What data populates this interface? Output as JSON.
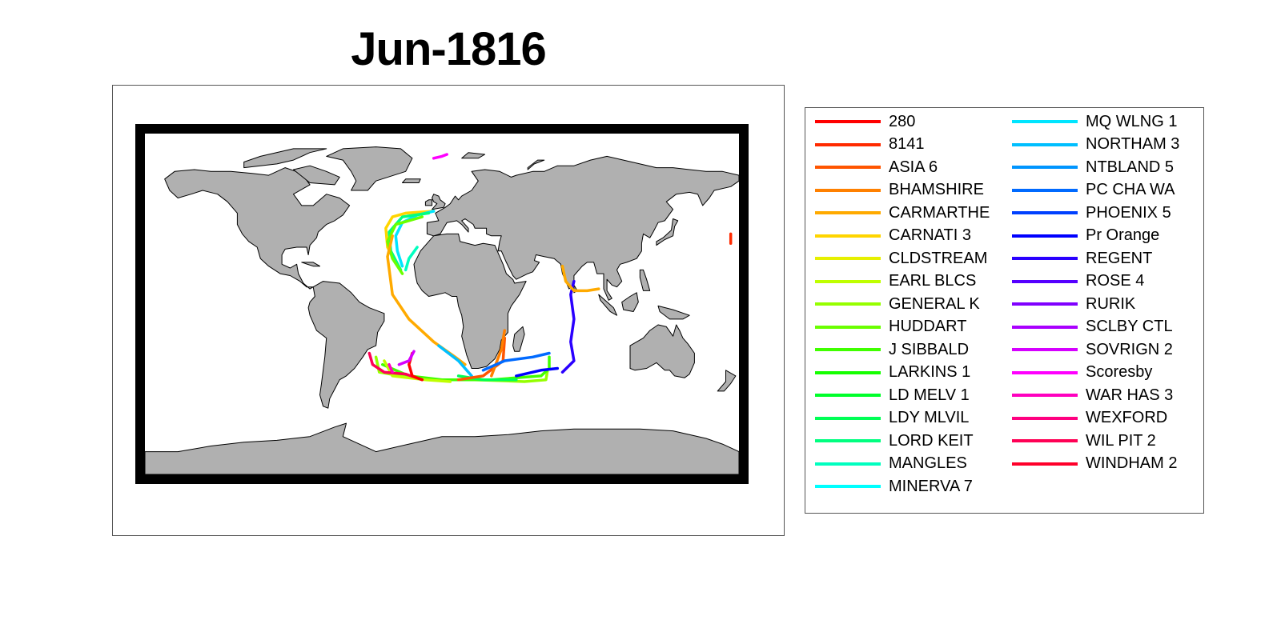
{
  "title": "Jun-1816",
  "map": {
    "projection": "equirectangular",
    "land_color": "#b0b0b0",
    "ocean_color": "#ffffff",
    "frame_color": "#000000"
  },
  "legend": {
    "columns": [
      [
        {
          "name": "280",
          "color": "#ff0000"
        },
        {
          "name": "8141",
          "color": "#ff2a00"
        },
        {
          "name": "ASIA 6",
          "color": "#ff5500"
        },
        {
          "name": "BHAMSHIRE",
          "color": "#ff8000"
        },
        {
          "name": "CARMARTHE",
          "color": "#ffaa00"
        },
        {
          "name": "CARNATI 3",
          "color": "#ffd500"
        },
        {
          "name": "CLDSTREAM",
          "color": "#e6f000"
        },
        {
          "name": "EARL BLCS",
          "color": "#bfff00"
        },
        {
          "name": "GENERAL K",
          "color": "#95ff00"
        },
        {
          "name": "HUDDART",
          "color": "#6aff00"
        },
        {
          "name": "J SIBBALD",
          "color": "#40ff00"
        },
        {
          "name": "LARKINS 1",
          "color": "#15ff00"
        },
        {
          "name": "LD MELV 1",
          "color": "#00ff2a"
        },
        {
          "name": "LDY MLVIL",
          "color": "#00ff55"
        },
        {
          "name": "LORD KEIT",
          "color": "#00ff80"
        },
        {
          "name": "MANGLES",
          "color": "#00ffbf"
        },
        {
          "name": "MINERVA 7",
          "color": "#00ffff"
        }
      ],
      [
        {
          "name": "MQ WLNG 1",
          "color": "#00e5ff"
        },
        {
          "name": "NORTHAM 3",
          "color": "#00bfff"
        },
        {
          "name": "NTBLAND 5",
          "color": "#0095ff"
        },
        {
          "name": "PC CHA WA",
          "color": "#006aff"
        },
        {
          "name": "PHOENIX 5",
          "color": "#0040ff"
        },
        {
          "name": "Pr Orange",
          "color": "#0000ff"
        },
        {
          "name": "REGENT",
          "color": "#2a00ff"
        },
        {
          "name": "ROSE 4",
          "color": "#5500ff"
        },
        {
          "name": "RURIK",
          "color": "#8000ff"
        },
        {
          "name": "SCLBY CTL",
          "color": "#aa00ff"
        },
        {
          "name": "SOVRIGN 2",
          "color": "#d500ff"
        },
        {
          "name": "Scoresby",
          "color": "#ff00ff"
        },
        {
          "name": "WAR HAS 3",
          "color": "#ff00bf"
        },
        {
          "name": "WEXFORD",
          "color": "#ff0080"
        },
        {
          "name": "WIL PIT 2",
          "color": "#ff0055"
        },
        {
          "name": "WINDHAM 2",
          "color": "#ff002a"
        }
      ]
    ]
  },
  "tracks": [
    {
      "ship": "CARNATI 3",
      "color": "#ffd500",
      "coords": [
        [
          -5,
          49
        ],
        [
          -22,
          48
        ],
        [
          -30,
          46
        ],
        [
          -34,
          40
        ],
        [
          -33,
          30
        ],
        [
          -28,
          22
        ]
      ]
    },
    {
      "ship": "MQ WLNG 1",
      "color": "#00e5ff",
      "coords": [
        [
          -5,
          49
        ],
        [
          -15,
          47
        ],
        [
          -24,
          43
        ],
        [
          -28,
          36
        ],
        [
          -27,
          28
        ],
        [
          -24,
          20
        ]
      ]
    },
    {
      "ship": "LORD KEIT",
      "color": "#00ff80",
      "coords": [
        [
          -8,
          48
        ],
        [
          -24,
          46
        ],
        [
          -32,
          38
        ],
        [
          -31,
          28
        ],
        [
          -25,
          18
        ]
      ]
    },
    {
      "ship": "HUDDART",
      "color": "#6aff00",
      "coords": [
        [
          -12,
          46
        ],
        [
          -28,
          42
        ],
        [
          -33,
          33
        ],
        [
          -30,
          24
        ],
        [
          -24,
          16
        ]
      ]
    },
    {
      "ship": "MANGLES",
      "color": "#00ffbf",
      "coords": [
        [
          -15,
          30
        ],
        [
          -20,
          24
        ],
        [
          -22,
          18
        ]
      ]
    },
    {
      "ship": "CARMARTHE",
      "color": "#ffaa00",
      "coords": [
        [
          -30,
          36
        ],
        [
          -33,
          25
        ],
        [
          -30,
          5
        ],
        [
          -20,
          -8
        ],
        [
          -5,
          -20
        ],
        [
          8,
          -28
        ],
        [
          14,
          -32
        ]
      ]
    },
    {
      "ship": "NORTHAM 3",
      "color": "#00bfff",
      "coords": [
        [
          -2,
          -22
        ],
        [
          10,
          -30
        ],
        [
          15,
          -35
        ],
        [
          18,
          -38
        ]
      ]
    },
    {
      "ship": "GENERAL K",
      "color": "#95ff00",
      "coords": [
        [
          -40,
          -28
        ],
        [
          -38,
          -36
        ],
        [
          -25,
          -38
        ],
        [
          -5,
          -40
        ],
        [
          20,
          -40
        ],
        [
          50,
          -41
        ],
        [
          63,
          -40
        ],
        [
          64,
          -35
        ]
      ]
    },
    {
      "ship": "J SIBBALD",
      "color": "#40ff00",
      "coords": [
        [
          -36,
          -32
        ],
        [
          -20,
          -38
        ],
        [
          0,
          -40
        ],
        [
          30,
          -40
        ],
        [
          60,
          -38
        ],
        [
          65,
          -34
        ],
        [
          65,
          -28
        ]
      ]
    },
    {
      "ship": "LDY MLVIL",
      "color": "#00ff55",
      "coords": [
        [
          10,
          -38
        ],
        [
          25,
          -40
        ],
        [
          45,
          -40
        ]
      ]
    },
    {
      "ship": "EARL BLCS",
      "color": "#bfff00",
      "coords": [
        [
          -35,
          -30
        ],
        [
          -30,
          -38
        ],
        [
          -10,
          -40
        ],
        [
          5,
          -41
        ]
      ]
    },
    {
      "ship": "WIL PIT 2",
      "color": "#ff0055",
      "coords": [
        [
          -44,
          -26
        ],
        [
          -42,
          -32
        ],
        [
          -35,
          -36
        ],
        [
          -22,
          -37
        ],
        [
          -12,
          -40
        ]
      ]
    },
    {
      "ship": "280",
      "color": "#ff0000",
      "coords": [
        [
          -18,
          -26
        ],
        [
          -20,
          -32
        ],
        [
          -18,
          -38
        ],
        [
          -12,
          -40
        ]
      ]
    },
    {
      "ship": "SOVRIGN 2",
      "color": "#d500ff",
      "coords": [
        [
          -26,
          -32
        ],
        [
          -20,
          -30
        ],
        [
          -17,
          -25
        ]
      ]
    },
    {
      "ship": "WAR HAS 3",
      "color": "#ff00bf",
      "coords": [
        [
          -32,
          -32
        ],
        [
          -30,
          -36
        ]
      ]
    },
    {
      "ship": "ASIA 6",
      "color": "#ff5500",
      "coords": [
        [
          10,
          -40
        ],
        [
          25,
          -38
        ],
        [
          37,
          -30
        ],
        [
          38,
          -18
        ]
      ]
    },
    {
      "ship": "BHAMSHIRE",
      "color": "#ff8000",
      "coords": [
        [
          30,
          -38
        ],
        [
          36,
          -24
        ],
        [
          38,
          -14
        ]
      ]
    },
    {
      "ship": "PC CHA WA",
      "color": "#006aff",
      "coords": [
        [
          25,
          -35
        ],
        [
          38,
          -30
        ],
        [
          55,
          -28
        ],
        [
          65,
          -26
        ]
      ]
    },
    {
      "ship": "Pr Orange",
      "color": "#0000ff",
      "coords": [
        [
          45,
          -38
        ],
        [
          60,
          -35
        ],
        [
          70,
          -34
        ]
      ]
    },
    {
      "ship": "REGENT",
      "color": "#2a00ff",
      "coords": [
        [
          73,
          -36
        ],
        [
          80,
          -30
        ],
        [
          78,
          -20
        ],
        [
          80,
          -8
        ],
        [
          78,
          5
        ],
        [
          80,
          12
        ]
      ]
    },
    {
      "ship": "CARMARTHE",
      "color": "#ffaa00",
      "coords": [
        [
          73,
          20
        ],
        [
          75,
          12
        ],
        [
          80,
          7
        ],
        [
          88,
          7
        ],
        [
          95,
          8
        ]
      ]
    },
    {
      "ship": "Scoresby",
      "color": "#ff00ff",
      "coords": [
        [
          -5,
          77
        ],
        [
          0,
          78
        ],
        [
          3,
          79
        ]
      ]
    },
    {
      "ship": "8141",
      "color": "#ff2a00",
      "coords": [
        [
          175,
          37
        ],
        [
          175,
          32
        ]
      ]
    }
  ]
}
